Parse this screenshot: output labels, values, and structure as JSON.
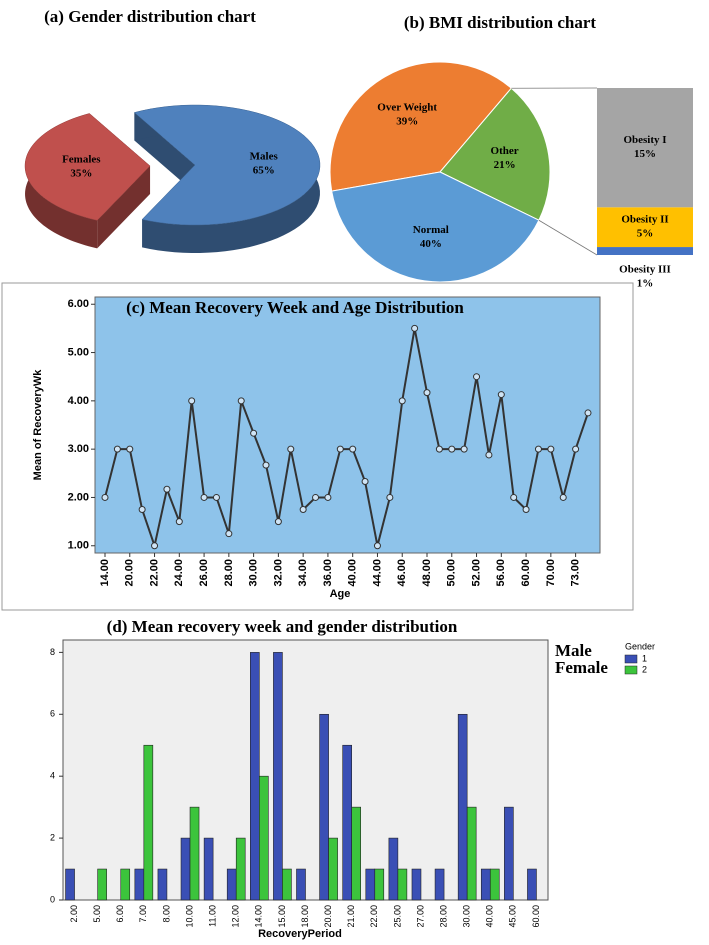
{
  "chart_data": [
    {
      "type": "pie",
      "style": "3d",
      "title": "(a) Gender distribution chart",
      "categories": [
        "Females",
        "Males"
      ],
      "values": [
        35,
        65
      ],
      "value_labels": [
        "35%",
        "65%"
      ],
      "colors": [
        "#c0504d",
        "#4f81bd"
      ],
      "explode": "Females"
    },
    {
      "type": "pie",
      "style": "bar-of-pie",
      "title": "(b) BMI distribution chart",
      "categories": [
        "Over Weight",
        "Other",
        "Normal"
      ],
      "values": [
        39,
        21,
        40
      ],
      "value_labels": [
        "39%",
        "21%",
        "40%"
      ],
      "colors": [
        "#ed7d31",
        "#70ad47",
        "#5b9bd5"
      ],
      "breakdown": {
        "of": "Other",
        "categories": [
          "Obesity I",
          "Obesity II",
          "Obesity III"
        ],
        "values": [
          15,
          5,
          1
        ],
        "value_labels": [
          "15%",
          "5%",
          "1%"
        ],
        "colors": [
          "#a5a5a5",
          "#ffc000",
          "#4472c4"
        ]
      }
    },
    {
      "type": "line",
      "title": "(c) Mean Recovery Week and Age Distribution",
      "xlabel": "Age",
      "ylabel": "Mean of RecoveryWk",
      "categories": [
        "14.00",
        null,
        "20.00",
        null,
        "22.00",
        null,
        "24.00",
        null,
        "26.00",
        null,
        "28.00",
        null,
        "30.00",
        null,
        "32.00",
        null,
        "34.00",
        null,
        "36.00",
        null,
        "40.00",
        null,
        "44.00",
        null,
        "46.00",
        null,
        "48.00",
        null,
        "50.00",
        null,
        "52.00",
        null,
        "56.00",
        null,
        "60.00",
        null,
        "70.00",
        null,
        "73.00",
        null
      ],
      "values": [
        2.0,
        3.0,
        3.0,
        1.75,
        1.0,
        2.17,
        1.5,
        4.0,
        2.0,
        2.0,
        1.25,
        4.0,
        3.33,
        2.67,
        1.5,
        3.0,
        1.75,
        2.0,
        2.0,
        3.0,
        3.0,
        2.33,
        1.0,
        2.0,
        4.0,
        5.5,
        4.17,
        3.0,
        3.0,
        3.0,
        4.5,
        2.88,
        4.13,
        2.0,
        1.75,
        3.0,
        3.0,
        2.0,
        3.0,
        3.75
      ],
      "color": "#333333",
      "background": "#8ec3ea",
      "ylim": [
        0.85,
        6.15
      ],
      "yticks": [
        {
          "value": 1,
          "label": "1.00"
        },
        {
          "value": 2,
          "label": "2.00"
        },
        {
          "value": 3,
          "label": "3.00"
        },
        {
          "value": 4,
          "label": "4.00"
        },
        {
          "value": 5,
          "label": "5.00"
        },
        {
          "value": 6,
          "label": "6.00"
        }
      ]
    },
    {
      "type": "bar",
      "title": "(d) Mean recovery week and gender distribution",
      "xlabel": "RecoveryPeriod",
      "categories": [
        "2.00",
        "5.00",
        "6.00",
        "7.00",
        "8.00",
        "10.00",
        "11.00",
        "12.00",
        "14.00",
        "15.00",
        "18.00",
        "20.00",
        "21.00",
        "22.00",
        "25.00",
        "27.00",
        "28.00",
        "30.00",
        "40.00",
        "45.00",
        "60.00"
      ],
      "series": [
        {
          "name": "1",
          "color": "#3a4fb5",
          "values": [
            1,
            null,
            null,
            1,
            1,
            2,
            2,
            1,
            8,
            8,
            1,
            6,
            5,
            1,
            2,
            1,
            1,
            6,
            1,
            3,
            1
          ]
        },
        {
          "name": "2",
          "color": "#3cc43c",
          "values": [
            null,
            1,
            1,
            5,
            null,
            3,
            null,
            2,
            4,
            1,
            null,
            2,
            3,
            1,
            1,
            null,
            null,
            3,
            1,
            null,
            null
          ]
        }
      ],
      "legend_title": "Gender",
      "annotations": [
        "Male",
        "Female"
      ],
      "background": "#efefef",
      "ylim": [
        0,
        8.4
      ],
      "yticks": [
        0,
        2,
        4,
        6,
        8
      ]
    }
  ]
}
